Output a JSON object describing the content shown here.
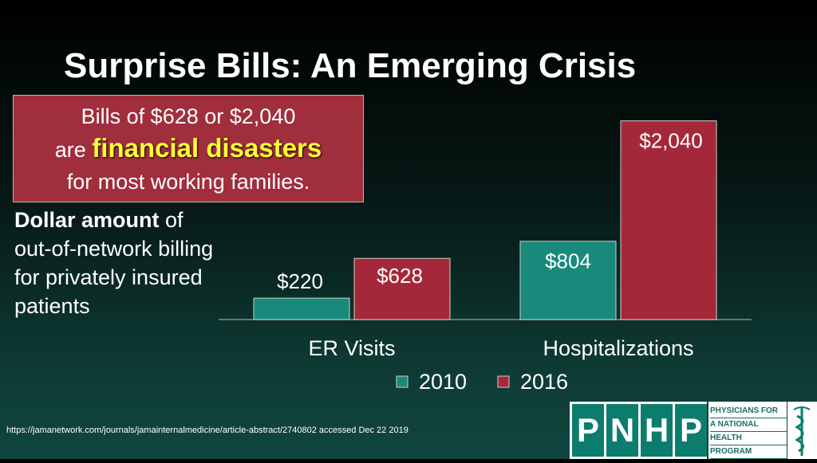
{
  "title": "Surprise Bills: An Emerging Crisis",
  "callout": {
    "line1": "Bills of $628 or $2,040",
    "line2_prefix": "are",
    "line2_highlight": "financial disasters",
    "line3": "for most working families."
  },
  "description": {
    "bold": "Dollar amount",
    "rest": " of out-of-network billing for privately insured patients"
  },
  "source": "https://jamanetwork.com/journals/jamainternalmedicine/article-abstract/2740802 accessed Dec 22 2019",
  "logo": {
    "letters": [
      "P",
      "N",
      "H",
      "P"
    ],
    "words": [
      "PHYSICIANS FOR",
      "A NATIONAL",
      "HEALTH",
      "PROGRAM"
    ],
    "icon": "caduceus-icon"
  },
  "colors": {
    "series_2010": "#178a7b",
    "series_2016": "#a5283a",
    "callout_bg": "#a12e3d",
    "highlight_text": "#ffff33",
    "logo_green": "#0c7d6c"
  },
  "chart_data": {
    "type": "bar",
    "categories": [
      "ER Visits",
      "Hospitalizations"
    ],
    "series": [
      {
        "name": "2010",
        "values": [
          220,
          804
        ],
        "labels": [
          "$220",
          "$804"
        ]
      },
      {
        "name": "2016",
        "values": [
          628,
          2040
        ],
        "labels": [
          "$628",
          "$2,040"
        ]
      }
    ],
    "ylim": [
      0,
      2250
    ],
    "grid": false,
    "legend": "bottom-center"
  }
}
